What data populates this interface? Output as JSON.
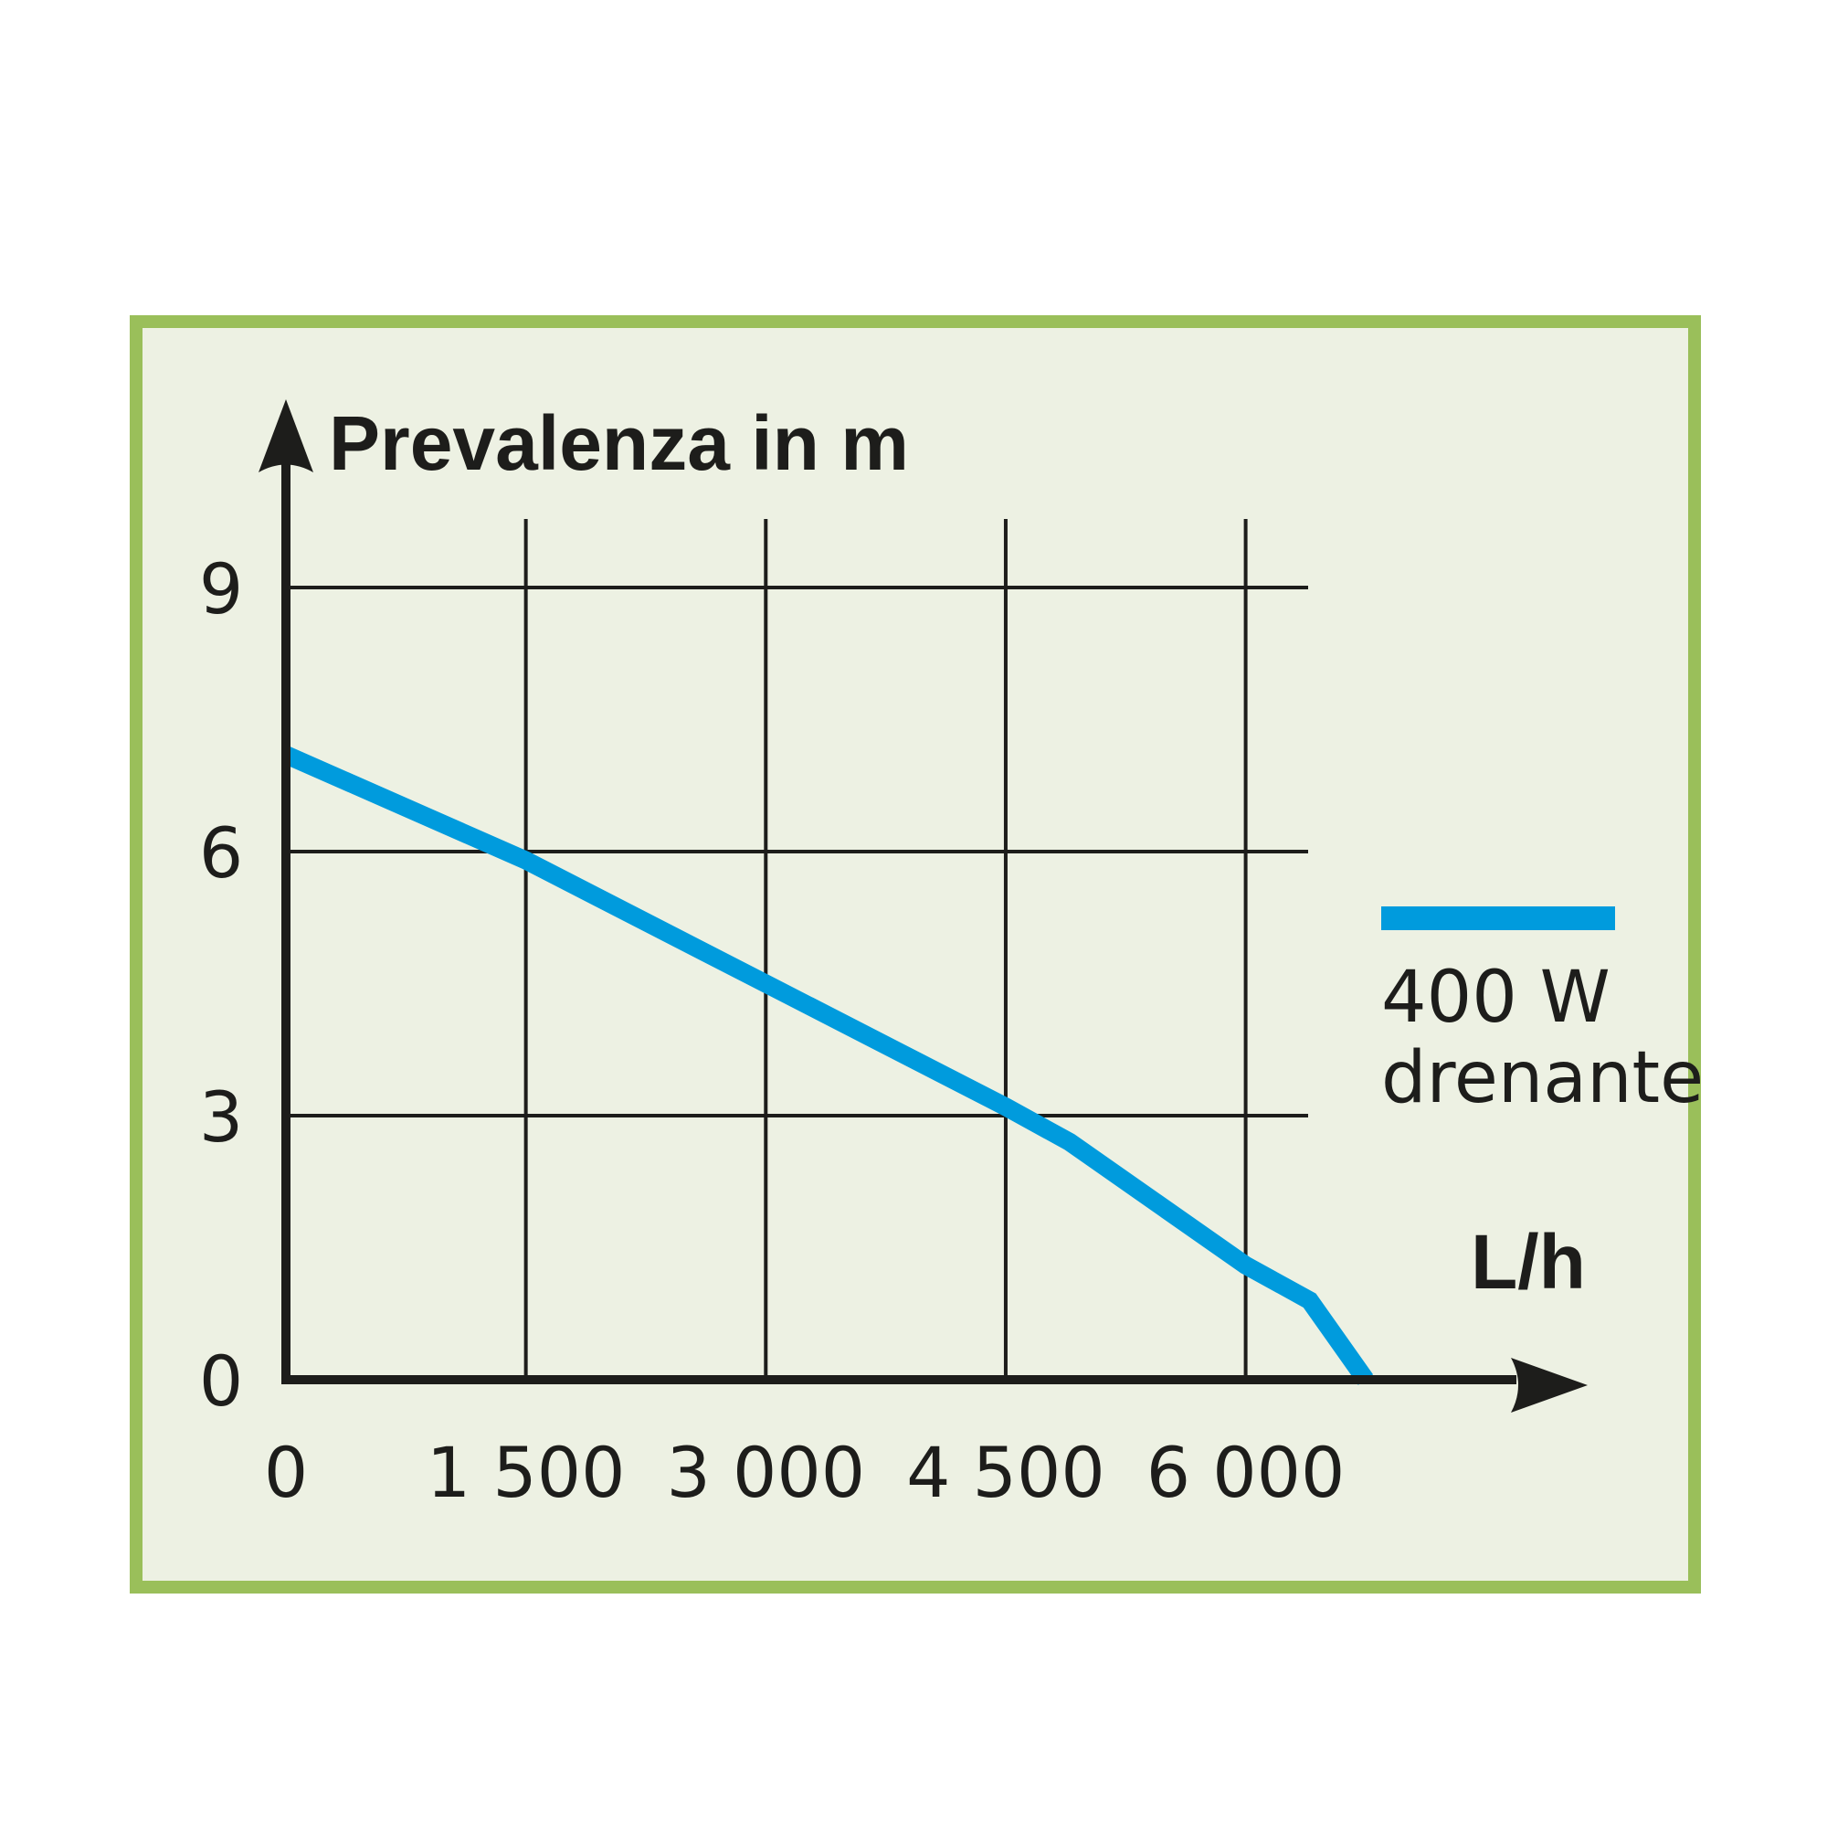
{
  "colors": {
    "background": "#ffffff",
    "panel_fill": "#edf1e3",
    "panel_border": "#9abf5a",
    "axis": "#1d1d1b",
    "grid": "#1d1d1b",
    "series": "#009bdd"
  },
  "chart_data": {
    "type": "line",
    "title": "",
    "ylabel": "Prevalenza in m",
    "xlabel": "L/h",
    "xlim": [
      0,
      6800
    ],
    "ylim": [
      0,
      10.5
    ],
    "x_ticks": [
      {
        "value": 0,
        "label": "0"
      },
      {
        "value": 1500,
        "label": "1 500"
      },
      {
        "value": 3000,
        "label": "3 000"
      },
      {
        "value": 4500,
        "label": "4 500"
      },
      {
        "value": 6000,
        "label": "6 000"
      }
    ],
    "y_ticks": [
      {
        "value": 0,
        "label": "0"
      },
      {
        "value": 3,
        "label": "3"
      },
      {
        "value": 6,
        "label": "6"
      },
      {
        "value": 9,
        "label": "9"
      }
    ],
    "grid": true,
    "legend_position": "right",
    "series": [
      {
        "name_lines": [
          "400 W",
          "drenante"
        ],
        "color": "#009bdd",
        "points": [
          {
            "x": 0,
            "y": 7.1
          },
          {
            "x": 1500,
            "y": 5.9
          },
          {
            "x": 3000,
            "y": 4.5
          },
          {
            "x": 4500,
            "y": 3.1
          },
          {
            "x": 4900,
            "y": 2.7
          },
          {
            "x": 6000,
            "y": 1.3
          },
          {
            "x": 6400,
            "y": 0.9
          },
          {
            "x": 6750,
            "y": 0
          }
        ]
      }
    ]
  }
}
